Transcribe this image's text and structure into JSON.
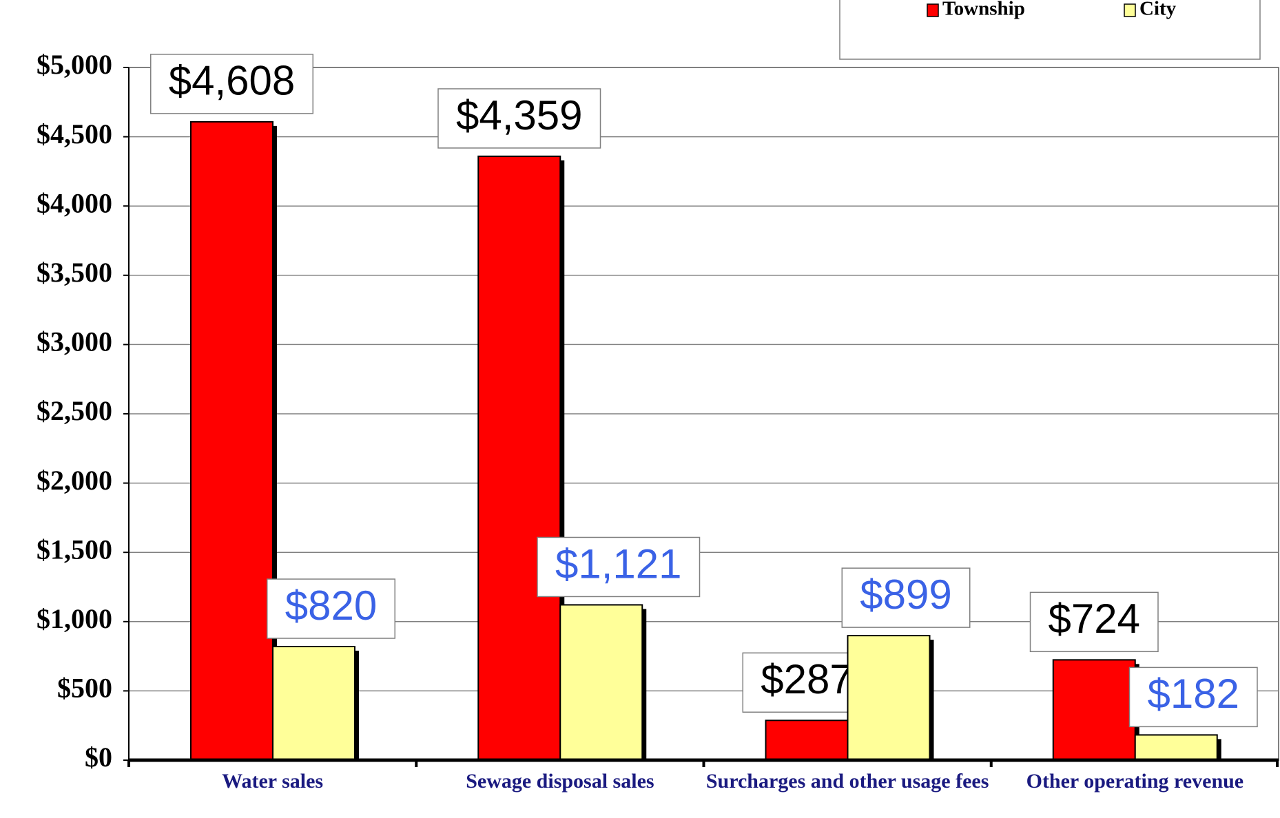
{
  "chart_data": {
    "type": "bar",
    "categories": [
      "Water sales",
      "Sewage disposal sales",
      "Surcharges and other usage fees",
      "Other operating revenue"
    ],
    "series": [
      {
        "name": "Township",
        "color": "#ff0000",
        "label_color": "#000000",
        "values": [
          4608,
          4359,
          287,
          724
        ],
        "value_labels": [
          "$4,608",
          "$4,359",
          "$287",
          "$724"
        ]
      },
      {
        "name": "City",
        "color": "#ffff99",
        "label_color": "#3a62e6",
        "values": [
          820,
          1121,
          899,
          182
        ],
        "value_labels": [
          "$820",
          "$1,121",
          "$899",
          "$182"
        ]
      }
    ],
    "ylim": [
      0,
      5000
    ],
    "yticks": [
      {
        "value": 0,
        "label": "$0"
      },
      {
        "value": 500,
        "label": "$500"
      },
      {
        "value": 1000,
        "label": "$1,000"
      },
      {
        "value": 1500,
        "label": "$1,500"
      },
      {
        "value": 2000,
        "label": "$2,000"
      },
      {
        "value": 2500,
        "label": "$2,500"
      },
      {
        "value": 3000,
        "label": "$3,000"
      },
      {
        "value": 3500,
        "label": "$3,500"
      },
      {
        "value": 4000,
        "label": "$4,000"
      },
      {
        "value": 4500,
        "label": "$4,500"
      },
      {
        "value": 5000,
        "label": "$5,000"
      }
    ],
    "grid": true,
    "legend": "top-right"
  }
}
